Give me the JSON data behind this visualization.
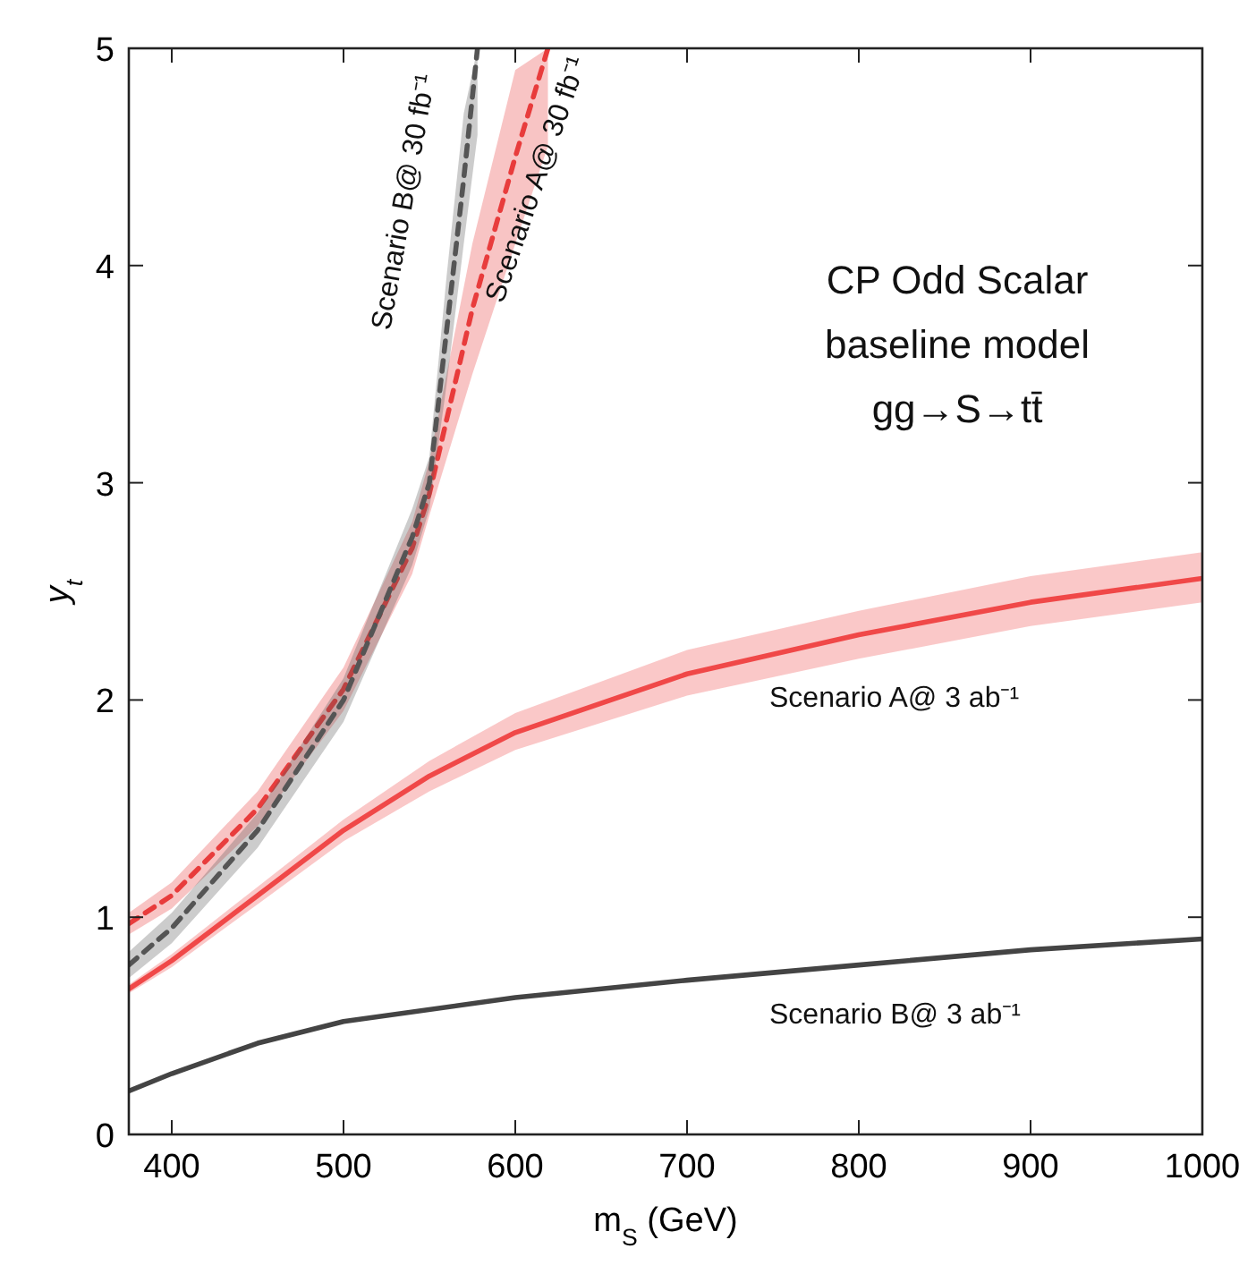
{
  "chart_data": {
    "type": "line",
    "xlabel": "m$_{S}$ (GeV)",
    "ylabel": "y$_{t}$",
    "xlim": [
      375,
      1000
    ],
    "ylim": [
      0,
      5
    ],
    "xticks": [
      400,
      500,
      600,
      700,
      800,
      900,
      1000
    ],
    "yticks": [
      0,
      1,
      2,
      3,
      4,
      5
    ],
    "grid": false,
    "annotations": [
      "CP Odd Scalar",
      "baseline model",
      "gg→S→tt̄"
    ],
    "series": [
      {
        "name": "Scenario A@ 30 fb⁻¹",
        "color": "#e83c3c",
        "line_style": "dashed",
        "x": [
          375,
          400,
          450,
          500,
          540,
          550,
          575,
          600,
          619
        ],
        "values": [
          0.97,
          1.1,
          1.5,
          2.05,
          2.7,
          2.95,
          3.8,
          4.5,
          5.0
        ],
        "lower": [
          0.92,
          1.04,
          1.42,
          1.95,
          2.58,
          2.85,
          3.5,
          4.1,
          4.55
        ],
        "upper": [
          1.02,
          1.16,
          1.58,
          2.15,
          2.82,
          3.1,
          4.1,
          4.9,
          5.0
        ]
      },
      {
        "name": "Scenario B@ 30 fb⁻¹",
        "color": "#555555",
        "line_style": "dashed",
        "x": [
          375,
          400,
          450,
          500,
          540,
          550,
          560,
          570,
          578
        ],
        "values": [
          0.78,
          0.95,
          1.4,
          2.0,
          2.75,
          3.0,
          3.7,
          4.4,
          5.0
        ],
        "lower": [
          0.72,
          0.88,
          1.32,
          1.9,
          2.62,
          2.88,
          3.45,
          4.1,
          4.6
        ],
        "upper": [
          0.84,
          1.02,
          1.48,
          2.1,
          2.88,
          3.12,
          3.95,
          4.7,
          5.0
        ]
      },
      {
        "name": "Scenario A@ 3 ab⁻¹",
        "color": "#f04848",
        "line_style": "solid",
        "x": [
          375,
          400,
          450,
          500,
          550,
          600,
          700,
          800,
          900,
          1000
        ],
        "values": [
          0.67,
          0.8,
          1.1,
          1.4,
          1.65,
          1.85,
          2.12,
          2.3,
          2.45,
          2.56
        ],
        "lower": [
          0.65,
          0.77,
          1.06,
          1.35,
          1.58,
          1.77,
          2.02,
          2.19,
          2.34,
          2.45
        ],
        "upper": [
          0.69,
          0.83,
          1.14,
          1.45,
          1.72,
          1.94,
          2.23,
          2.41,
          2.57,
          2.68
        ]
      },
      {
        "name": "Scenario B@ 3 ab⁻¹",
        "color": "#444444",
        "line_style": "solid",
        "x": [
          375,
          400,
          450,
          500,
          600,
          700,
          800,
          900,
          1000
        ],
        "values": [
          0.2,
          0.28,
          0.42,
          0.52,
          0.63,
          0.71,
          0.78,
          0.85,
          0.9
        ]
      }
    ]
  }
}
